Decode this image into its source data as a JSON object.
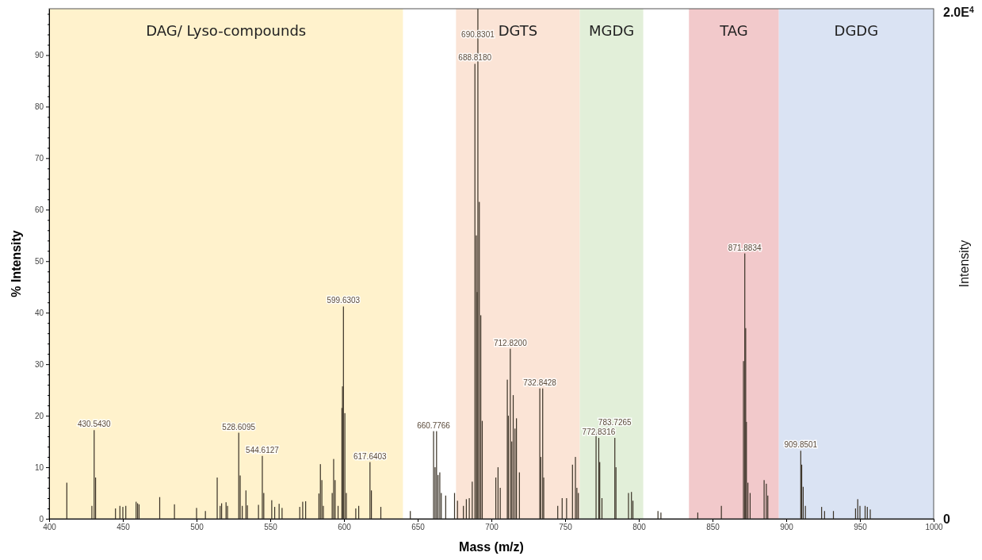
{
  "chart_data": {
    "type": "bar",
    "xlabel": "Mass (m/z)",
    "ylabel": "% Intensity",
    "y2label": "Intensity",
    "xlim": [
      400,
      1000
    ],
    "xticks": [
      400,
      450,
      500,
      550,
      600,
      650,
      700,
      750,
      800,
      850,
      900,
      950,
      1000
    ],
    "ylim": [
      0,
      99
    ],
    "yticks": [
      0,
      {
        "value": 2,
        "label": null
      },
      {
        "value": 4,
        "label": null
      },
      {
        "value": 6,
        "label": null
      },
      {
        "value": 8,
        "label": null
      },
      10,
      {
        "value": 12,
        "label": null
      },
      {
        "value": 14,
        "label": null
      },
      {
        "value": 16,
        "label": null
      },
      {
        "value": 18,
        "label": null
      },
      20,
      {
        "value": 22,
        "label": null
      },
      {
        "value": 24,
        "label": null
      },
      {
        "value": 26,
        "label": null
      },
      {
        "value": 28,
        "label": null
      },
      30,
      {
        "value": 32,
        "label": null
      },
      {
        "value": 34,
        "label": null
      },
      {
        "value": 36,
        "label": null
      },
      {
        "value": 38,
        "label": null
      },
      40,
      {
        "value": 42,
        "label": null
      },
      {
        "value": 44,
        "label": null
      },
      {
        "value": 46,
        "label": null
      },
      {
        "value": 48,
        "label": null
      },
      50,
      {
        "value": 52,
        "label": null
      },
      {
        "value": 54,
        "label": null
      },
      {
        "value": 56,
        "label": null
      },
      {
        "value": 58,
        "label": null
      },
      60,
      {
        "value": 62,
        "label": null
      },
      {
        "value": 64,
        "label": null
      },
      {
        "value": 66,
        "label": null
      },
      {
        "value": 68,
        "label": null
      },
      70,
      {
        "value": 72,
        "label": null
      },
      {
        "value": 74,
        "label": null
      },
      {
        "value": 76,
        "label": null
      },
      {
        "value": 78,
        "label": null
      },
      80,
      {
        "value": 82,
        "label": null
      },
      {
        "value": 84,
        "label": null
      },
      {
        "value": 86,
        "label": null
      },
      {
        "value": 88,
        "label": null
      },
      90,
      {
        "value": 92,
        "label": null
      },
      {
        "value": 94,
        "label": null
      },
      {
        "value": 96,
        "label": null
      },
      {
        "value": 98,
        "label": null
      }
    ],
    "annotations": [
      "0",
      "2.0E$^{4}$",
      {
        "text": "430.5430",
        "x": 430.543,
        "y": 17.2
      },
      {
        "text": "528.6095",
        "x": 528.6095,
        "y": 16.7
      },
      {
        "text": "544.6127",
        "x": 544.6127,
        "y": 12.2
      },
      {
        "text": "599.6303",
        "x": 599.6303,
        "y": 41.2
      },
      {
        "text": "617.6403",
        "x": 617.6403,
        "y": 11
      },
      {
        "text": "660.7766",
        "x": 660.7766,
        "y": 17
      },
      {
        "text": "688.8180",
        "x": 688.818,
        "y": 88.3
      },
      {
        "text": "690.8301",
        "x": 690.8301,
        "y": 99
      },
      {
        "text": "712.8200",
        "x": 712.82,
        "y": 33
      },
      {
        "text": "732.8428",
        "x": 732.8428,
        "y": 25.3
      },
      {
        "text": "772.8316",
        "x": 772.8316,
        "y": 15.7
      },
      {
        "text": "783.7265",
        "x": 783.7265,
        "y": 15.7
      },
      {
        "text": "871.8834",
        "x": 871.8834,
        "y": 51.5
      },
      {
        "text": "909.8501",
        "x": 909.8501,
        "y": 13.2
      }
    ],
    "grid": false,
    "bands": [
      {
        "axis": "x",
        "from": 400,
        "to": 640,
        "label": "DAG/ Lyso-compounds",
        "color": "#fff2cc"
      },
      {
        "axis": "x",
        "from": 676,
        "to": 760,
        "label": "DGTS",
        "color": "#fbe4d6"
      },
      {
        "axis": "x",
        "from": 760,
        "to": 803,
        "label": "MGDG",
        "color": "#e2efd9"
      },
      {
        "axis": "x",
        "from": 834,
        "to": 895,
        "label": "TAG",
        "color": "#f2c9cb"
      },
      {
        "axis": "x",
        "from": 895,
        "to": 1000,
        "label": "DGDG",
        "color": "#dae3f3"
      }
    ],
    "series": [
      {
        "color": "#3a3226",
        "x": [
          412,
          429,
          430.543,
          431.5,
          445,
          448,
          450,
          452,
          459,
          460,
          461,
          475,
          485,
          500,
          506,
          514,
          516,
          517,
          520,
          521,
          528.6095,
          529.6,
          531,
          533.5,
          534.5,
          542,
          544.6127,
          545.6,
          551,
          553,
          556,
          558,
          570,
          572,
          574,
          583,
          584,
          585,
          586,
          592,
          593,
          594,
          596,
          598.6,
          599,
          599.6303,
          600.6,
          601.6,
          608,
          610,
          617.6403,
          618.6,
          625,
          645,
          660.7766,
          661.8,
          662.8,
          663.8,
          665,
          666,
          669,
          675,
          677,
          681,
          683,
          685,
          687,
          688.818,
          689.8,
          690.3,
          690.8301,
          691.8,
          692.8,
          693.8,
          703,
          704.5,
          706,
          710.8,
          711.5,
          712.82,
          713.8,
          714.8,
          716,
          717,
          719,
          732.8428,
          733.5,
          734.8,
          735.5,
          745,
          748,
          751,
          755,
          757,
          758,
          759,
          771,
          772.8316,
          773.5,
          775,
          783.7265,
          784.5,
          793,
          795,
          796,
          813,
          815,
          840,
          856,
          871,
          871.8834,
          872.5,
          873,
          874,
          875.5,
          885,
          886.5,
          887.5,
          909.8501,
          910.5,
          911.5,
          913,
          924,
          926,
          932,
          947,
          948.5,
          950,
          953.5,
          955,
          957
        ],
        "values": [
          7,
          2.5,
          17.2,
          8,
          2,
          2.5,
          2.3,
          2.5,
          3.3,
          3,
          2.8,
          4.2,
          2.8,
          2.1,
          1.5,
          8,
          2.5,
          3,
          3.2,
          2.5,
          16.7,
          8.4,
          2.5,
          5.5,
          2.6,
          2.7,
          12.2,
          5,
          3.6,
          2.3,
          2.9,
          2.1,
          2.3,
          3.3,
          3.4,
          4.9,
          10.6,
          7.5,
          2.5,
          5,
          11.6,
          7.5,
          2.5,
          21.5,
          25.7,
          41.2,
          20.5,
          5,
          2,
          2.5,
          11,
          5.5,
          2.3,
          1.5,
          17,
          10,
          17,
          8.5,
          9,
          5,
          4.5,
          5,
          3.5,
          2.5,
          3.8,
          4,
          7.2,
          88.3,
          55,
          44,
          99,
          61.5,
          39.5,
          19,
          8,
          10,
          6,
          27,
          20,
          33,
          15,
          24,
          17.5,
          19.5,
          9,
          25.3,
          12,
          25.3,
          8,
          2.5,
          4,
          4,
          10.5,
          12,
          6,
          5,
          16.8,
          15.7,
          11,
          4,
          15.7,
          10,
          5,
          5.2,
          3.5,
          1.5,
          1.2,
          1.2,
          2.5,
          30.6,
          51.5,
          37,
          18.8,
          7,
          5,
          7.5,
          6.8,
          4.5,
          13.2,
          10.5,
          6.2,
          2.5,
          2.3,
          1.5,
          1.5,
          2,
          3.8,
          2.5,
          2.5,
          2.3,
          1.8
        ]
      }
    ]
  }
}
